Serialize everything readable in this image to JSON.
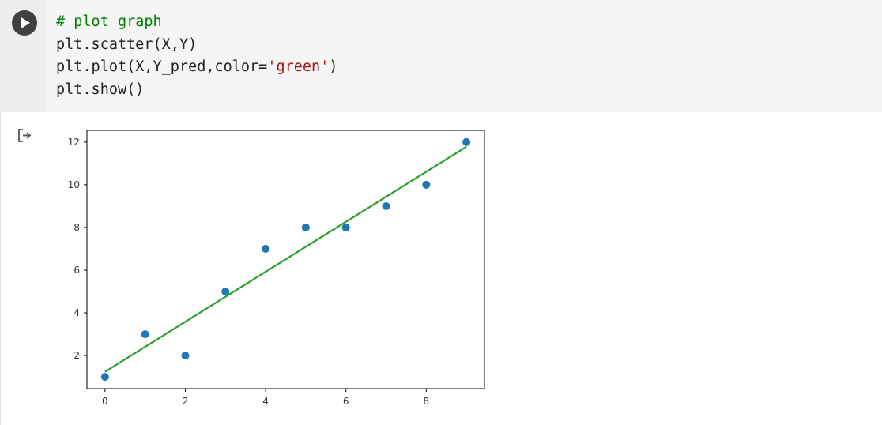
{
  "cell": {
    "run_icon": "play-icon",
    "output_icon": "output-redirect-icon",
    "code_lines": [
      [
        {
          "t": "# plot graph",
          "c": "comment"
        }
      ],
      [
        {
          "t": "plt.scatter(X,Y)",
          "c": ""
        }
      ],
      [
        {
          "t": "plt.plot(X,Y_pred,color=",
          "c": ""
        },
        {
          "t": "'green'",
          "c": "string"
        },
        {
          "t": ")",
          "c": ""
        }
      ],
      [
        {
          "t": "plt.show()",
          "c": ""
        }
      ]
    ]
  },
  "colors": {
    "scatter": "#1f77b4",
    "fit_line": "#2ca02c",
    "comment": "#008000",
    "string": "#a31515"
  },
  "chart_data": {
    "type": "scatter",
    "title": "",
    "xlabel": "",
    "ylabel": "",
    "xlim": [
      -0.45,
      9.45
    ],
    "ylim": [
      0.45,
      12.55
    ],
    "xticks": [
      0,
      2,
      4,
      6,
      8
    ],
    "yticks": [
      2,
      4,
      6,
      8,
      10,
      12
    ],
    "grid": false,
    "series": [
      {
        "kind": "scatter",
        "x": [
          0,
          1,
          2,
          3,
          4,
          5,
          6,
          7,
          8,
          9
        ],
        "y": [
          1,
          3,
          2,
          5,
          7,
          8,
          8,
          9,
          10,
          12
        ]
      },
      {
        "kind": "line",
        "x": [
          0,
          9
        ],
        "y": [
          1.24,
          11.78
        ]
      }
    ]
  }
}
